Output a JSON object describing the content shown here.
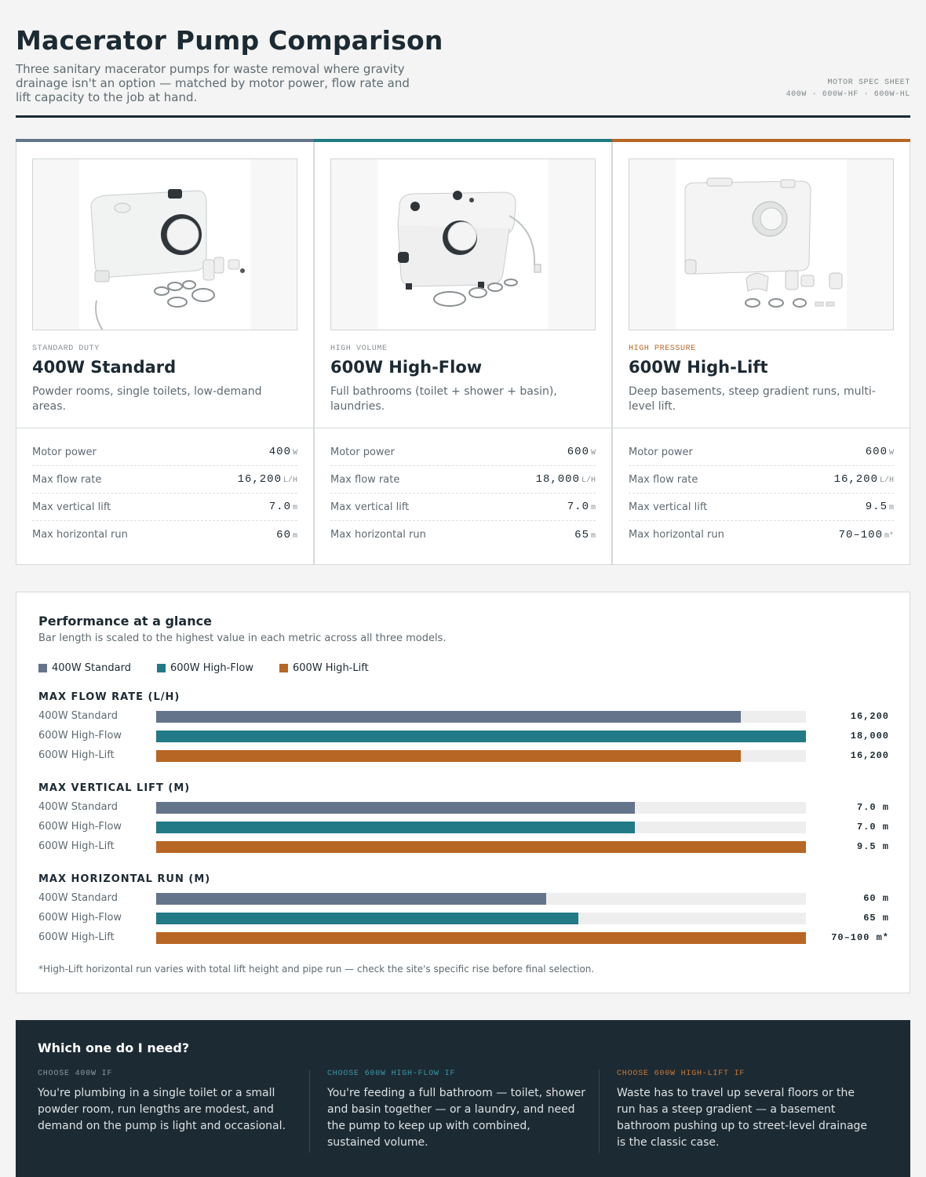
{
  "header": {
    "title": "Macerator Pump Comparison",
    "subtitle": "Three sanitary macerator pumps for waste removal where gravity drainage isn't an option — matched by motor power, flow rate and lift capacity to the job at hand.",
    "meta_line1": "MOTOR SPEC SHEET",
    "meta_line2": "400W · 600W-HF · 600W-HL"
  },
  "colors": {
    "standard": "#64748a",
    "highflow": "#217a86",
    "highlift": "#b86623"
  },
  "cards": [
    {
      "tier": "STANDARD DUTY",
      "name": "400W Standard",
      "desc": "Powder rooms, single toilets, low-demand areas.",
      "specs": [
        {
          "label": "Motor power",
          "value": "400",
          "unit": "W"
        },
        {
          "label": "Max flow rate",
          "value": "16,200",
          "unit": "L/H"
        },
        {
          "label": "Max vertical lift",
          "value": "7.0",
          "unit": "m"
        },
        {
          "label": "Max horizontal run",
          "value": "60",
          "unit": "m"
        }
      ]
    },
    {
      "tier": "HIGH VOLUME",
      "name": "600W High-Flow",
      "desc": "Full bathrooms (toilet + shower + basin), laundries.",
      "specs": [
        {
          "label": "Motor power",
          "value": "600",
          "unit": "W"
        },
        {
          "label": "Max flow rate",
          "value": "18,000",
          "unit": "L/H"
        },
        {
          "label": "Max vertical lift",
          "value": "7.0",
          "unit": "m"
        },
        {
          "label": "Max horizontal run",
          "value": "65",
          "unit": "m"
        }
      ]
    },
    {
      "tier": "HIGH PRESSURE",
      "name": "600W High-Lift",
      "desc": "Deep basements, steep gradient runs, multi-level lift.",
      "specs": [
        {
          "label": "Motor power",
          "value": "600",
          "unit": "W"
        },
        {
          "label": "Max flow rate",
          "value": "16,200",
          "unit": "L/H"
        },
        {
          "label": "Max vertical lift",
          "value": "9.5",
          "unit": "m"
        },
        {
          "label": "Max horizontal run",
          "value": "70–100",
          "unit": "m*"
        }
      ]
    }
  ],
  "performance": {
    "title": "Performance at a glance",
    "subtitle": "Bar length is scaled to the highest value in each metric across all three models.",
    "legend": [
      "400W Standard",
      "600W High-Flow",
      "600W High-Lift"
    ],
    "note": "*High-Lift horizontal run varies with total lift height and pipe run — check the site's specific rise before final selection."
  },
  "chart_data": {
    "type": "bar",
    "orientation": "horizontal",
    "categories": [
      "400W Standard",
      "600W High-Flow",
      "600W High-Lift"
    ],
    "metrics": [
      {
        "title": "MAX FLOW RATE (L/H)",
        "values": [
          16200,
          18000,
          16200
        ],
        "labels": [
          "16,200",
          "18,000",
          "16,200"
        ]
      },
      {
        "title": "MAX VERTICAL LIFT (M)",
        "values": [
          7.0,
          7.0,
          9.5
        ],
        "labels": [
          "7.0 m",
          "7.0 m",
          "9.5 m"
        ]
      },
      {
        "title": "MAX HORIZONTAL RUN (M)",
        "values": [
          60,
          65,
          100
        ],
        "labels": [
          "60 m",
          "65 m",
          "70–100 m*"
        ]
      }
    ]
  },
  "guide": {
    "title": "Which one do I need?",
    "columns": [
      {
        "label": "CHOOSE 400W IF",
        "text": "You're plumbing in a single toilet or a small powder room, run lengths are modest, and demand on the pump is light and occasional."
      },
      {
        "label": "CHOOSE 600W HIGH-FLOW IF",
        "text": "You're feeding a full bathroom — toilet, shower and basin together — or a laundry, and need the pump to keep up with combined, sustained volume."
      },
      {
        "label": "CHOOSE 600W HIGH-LIFT IF",
        "text": "Waste has to travel up several floors or the run has a steep gradient — a basement bathroom pushing up to street-level drainage is the classic case."
      }
    ]
  }
}
